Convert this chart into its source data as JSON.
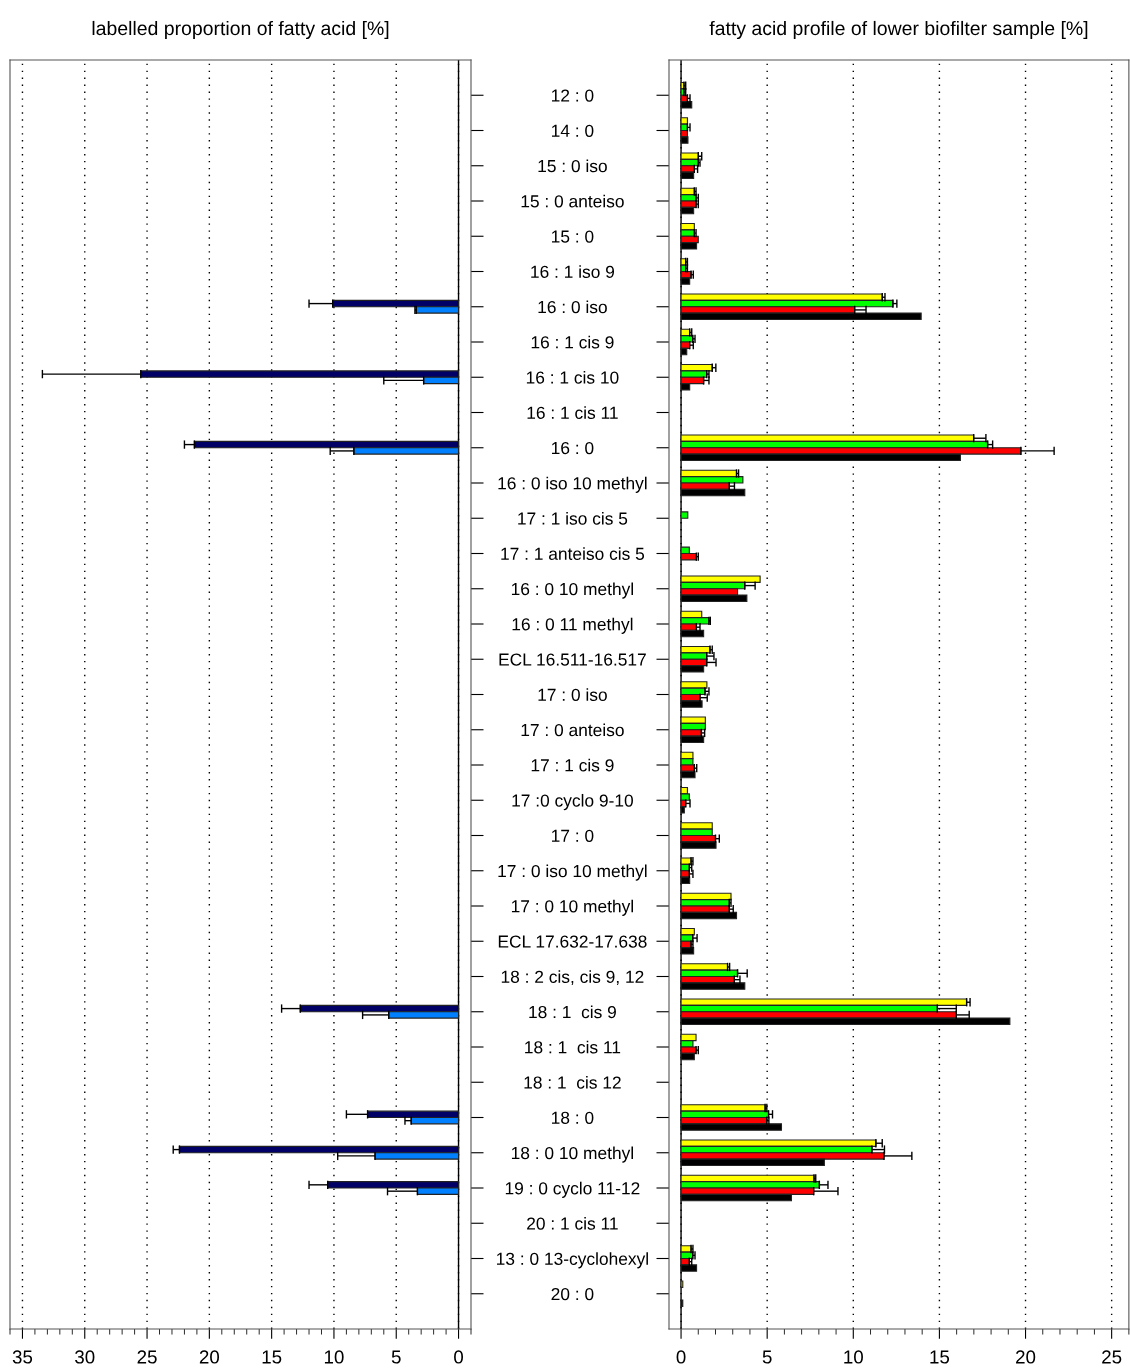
{
  "chart_data": [
    {
      "type": "bar",
      "orientation": "horizontal",
      "title": "labelled proportion of fatty acid [%]",
      "grid": "x",
      "categories": [
        "12 : 0",
        "14 : 0",
        "15 : 0 iso",
        "15 : 0 anteiso",
        "15 : 0",
        "16 : 1 iso 9",
        "16 : 0 iso",
        "16 : 1 cis 9",
        "16 : 1 cis 10",
        "16 : 1 cis 11",
        "16 : 0",
        "16 : 0 iso 10 methyl",
        "17 : 1 iso cis 5",
        "17 : 1 anteiso cis 5",
        "16 : 0 10 methyl",
        "16 : 0 11 methyl",
        "ECL 16.511-16.517",
        "17 : 0 iso",
        "17 : 0 anteiso",
        "17 : 1 cis 9",
        "17 :0 cyclo 9-10",
        "17 : 0",
        "17 : 0 iso 10 methyl",
        "17 : 0 10 methyl",
        "ECL 17.632-17.638",
        "18 : 2 cis, cis 9, 12",
        "18 : 1  cis 9",
        "18 : 1  cis 11",
        "18 : 1  cis 12",
        "18 : 0",
        "18 : 0 10 methyl",
        "19 : 0 cyclo 11-12",
        "20 : 1 cis 11",
        "13 : 0 13-cyclohexyl",
        "20 : 0"
      ],
      "xlim": [
        36,
        -1
      ],
      "xticks": [
        35,
        30,
        25,
        20,
        15,
        10,
        5,
        0
      ],
      "series": [
        {
          "color": "#000066",
          "values": [
            null,
            null,
            null,
            null,
            null,
            null,
            10.1,
            null,
            25.5,
            null,
            21.2,
            null,
            null,
            null,
            null,
            null,
            null,
            null,
            null,
            null,
            null,
            null,
            null,
            null,
            null,
            null,
            12.7,
            null,
            null,
            7.3,
            22.4,
            10.5,
            null,
            null,
            null
          ],
          "errors": [
            null,
            null,
            null,
            null,
            null,
            null,
            [
              10.1,
              12.0
            ],
            null,
            [
              25.5,
              33.4
            ],
            null,
            [
              21.2,
              22.0
            ],
            null,
            null,
            null,
            null,
            null,
            null,
            null,
            null,
            null,
            null,
            null,
            null,
            null,
            null,
            null,
            [
              12.7,
              14.2
            ],
            null,
            null,
            [
              7.3,
              9.0
            ],
            [
              22.4,
              22.9
            ],
            [
              10.5,
              12.0
            ],
            null,
            null,
            null
          ]
        },
        {
          "color": "#0080ff",
          "values": [
            null,
            null,
            null,
            null,
            null,
            null,
            3.4,
            null,
            2.8,
            null,
            8.4,
            null,
            null,
            null,
            null,
            null,
            null,
            null,
            null,
            null,
            null,
            null,
            null,
            null,
            null,
            null,
            5.6,
            null,
            null,
            3.8,
            6.7,
            3.3,
            null,
            null,
            null
          ],
          "errors": [
            null,
            null,
            null,
            null,
            null,
            null,
            [
              3.4,
              3.5
            ],
            null,
            [
              2.8,
              6.0
            ],
            null,
            [
              8.4,
              10.3
            ],
            null,
            null,
            null,
            null,
            null,
            null,
            null,
            null,
            null,
            null,
            null,
            null,
            null,
            null,
            null,
            [
              5.6,
              7.7
            ],
            null,
            null,
            [
              3.8,
              4.3
            ],
            [
              6.7,
              9.7
            ],
            [
              3.3,
              5.7
            ],
            null,
            null,
            null
          ]
        }
      ]
    },
    {
      "type": "bar",
      "orientation": "horizontal",
      "title": "fatty acid profile of lower biofilter sample [%]",
      "grid": "x",
      "tick_labels": "x",
      "xlim": [
        -0.7,
        26
      ],
      "xticks": [
        0,
        5,
        10,
        15,
        20,
        25
      ],
      "series": [
        {
          "color": "#ffff00",
          "values": [
            0.17,
            0.37,
            1.0,
            0.77,
            0.77,
            0.27,
            11.68,
            0.5,
            1.81,
            null,
            16.99,
            3.22,
            null,
            null,
            4.59,
            1.2,
            1.68,
            1.5,
            1.41,
            0.69,
            0.37,
            1.81,
            0.58,
            2.9,
            0.77,
            2.7,
            16.58,
            0.87,
            null,
            4.88,
            11.31,
            7.72,
            null,
            0.58,
            0.1
          ],
          "errors": [
            [
              0.17,
              0.27
            ],
            null,
            [
              1.0,
              1.2
            ],
            [
              0.77,
              0.87
            ],
            null,
            [
              0.27,
              0.37
            ],
            [
              11.68,
              11.84
            ],
            [
              0.5,
              0.62
            ],
            [
              1.81,
              2.02
            ],
            null,
            [
              16.99,
              17.7
            ],
            [
              3.22,
              3.34
            ],
            null,
            null,
            null,
            null,
            [
              1.68,
              1.81
            ],
            null,
            null,
            null,
            null,
            null,
            [
              0.58,
              0.69
            ],
            null,
            null,
            [
              2.7,
              2.82
            ],
            [
              16.58,
              16.78
            ],
            null,
            null,
            [
              4.88,
              4.98
            ],
            [
              11.31,
              11.68
            ],
            [
              7.72,
              7.82
            ],
            null,
            [
              0.58,
              0.69
            ],
            null
          ]
        },
        {
          "color": "#00ff00",
          "values": [
            0.17,
            0.37,
            1.0,
            0.87,
            0.77,
            0.27,
            12.3,
            0.68,
            1.49,
            null,
            17.8,
            3.59,
            0.39,
            0.48,
            3.7,
            1.62,
            1.49,
            1.39,
            1.41,
            0.69,
            0.48,
            1.81,
            0.48,
            2.8,
            0.68,
            3.28,
            14.88,
            0.69,
            null,
            5.08,
            11.08,
            8.03,
            null,
            0.68,
            null
          ],
          "errors": [
            [
              0.17,
              0.27
            ],
            [
              0.37,
              0.52
            ],
            [
              1.0,
              1.1
            ],
            [
              0.87,
              1.0
            ],
            [
              0.77,
              0.87
            ],
            [
              0.27,
              0.37
            ],
            [
              12.3,
              12.53
            ],
            [
              0.68,
              0.81
            ],
            [
              1.49,
              1.62
            ],
            null,
            [
              17.8,
              18.09
            ],
            null,
            null,
            null,
            [
              3.7,
              4.3
            ],
            [
              1.62,
              1.7
            ],
            [
              1.49,
              1.91
            ],
            [
              1.39,
              1.62
            ],
            null,
            null,
            null,
            null,
            [
              0.48,
              0.62
            ],
            [
              2.8,
              2.9
            ],
            [
              0.68,
              0.93
            ],
            [
              3.28,
              3.84
            ],
            [
              14.88,
              15.98
            ],
            null,
            null,
            [
              5.08,
              5.31
            ],
            [
              11.08,
              11.81
            ],
            [
              8.03,
              8.53
            ],
            null,
            [
              0.68,
              0.81
            ],
            null
          ]
        },
        {
          "color": "#ff0000",
          "values": [
            0.37,
            0.37,
            0.77,
            0.87,
            1.0,
            0.58,
            10.08,
            0.5,
            1.31,
            null,
            19.73,
            2.8,
            null,
            0.89,
            3.28,
            0.89,
            1.49,
            1.1,
            1.18,
            0.77,
            0.27,
            2.0,
            0.48,
            2.8,
            0.58,
            3.09,
            15.98,
            0.87,
            null,
            4.98,
            11.78,
            7.7,
            null,
            0.48,
            null
          ],
          "errors": [
            [
              0.37,
              0.52
            ],
            null,
            [
              0.77,
              0.96
            ],
            [
              0.87,
              1.0
            ],
            null,
            [
              0.58,
              0.71
            ],
            [
              10.08,
              10.74
            ],
            [
              0.5,
              0.71
            ],
            [
              1.31,
              1.62
            ],
            null,
            [
              19.73,
              21.66
            ],
            [
              2.8,
              3.1
            ],
            null,
            [
              0.89,
              1.0
            ],
            null,
            [
              0.89,
              1.1
            ],
            [
              1.49,
              2.03
            ],
            [
              1.1,
              1.52
            ],
            [
              1.18,
              1.37
            ],
            [
              0.77,
              0.91
            ],
            [
              0.27,
              0.52
            ],
            [
              2.0,
              2.22
            ],
            [
              0.48,
              0.69
            ],
            [
              2.8,
              3.03
            ],
            [
              0.58,
              0.69
            ],
            [
              3.09,
              3.42
            ],
            [
              15.98,
              16.73
            ],
            [
              0.87,
              1.0
            ],
            null,
            [
              4.98,
              5.1
            ],
            [
              11.78,
              13.4
            ],
            [
              7.7,
              9.11
            ],
            null,
            [
              0.48,
              0.62
            ],
            null
          ]
        },
        {
          "color": "#000000",
          "values": [
            0.62,
            0.4,
            0.73,
            0.73,
            0.9,
            0.5,
            13.94,
            0.33,
            0.5,
            null,
            16.22,
            3.7,
            null,
            null,
            3.82,
            1.31,
            1.31,
            1.22,
            1.31,
            0.81,
            0.19,
            2.03,
            0.5,
            3.22,
            0.73,
            3.7,
            19.09,
            0.77,
            null,
            5.83,
            8.32,
            6.41,
            null,
            0.9,
            0.1
          ]
        }
      ]
    }
  ]
}
